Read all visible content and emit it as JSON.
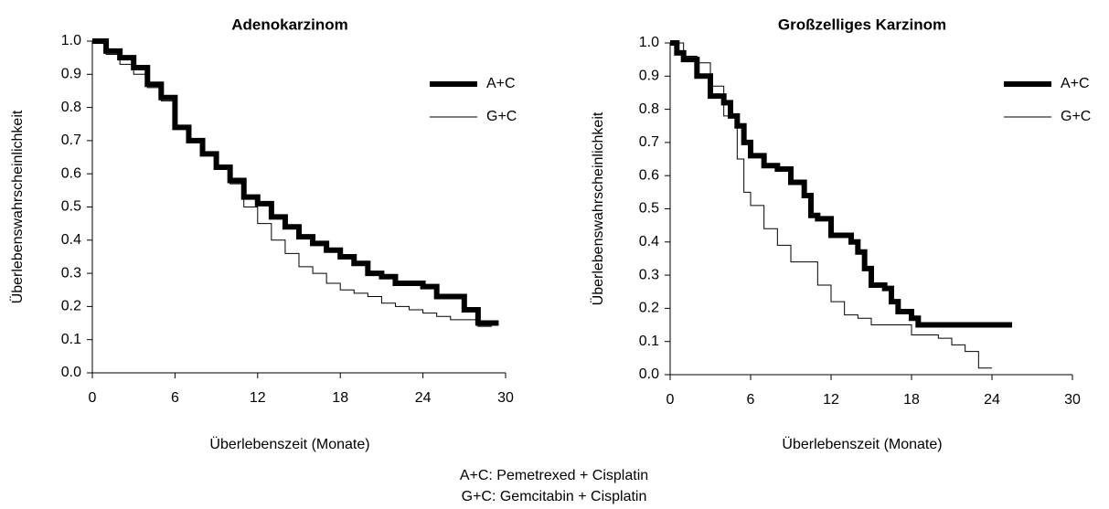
{
  "chart_data": [
    {
      "type": "step",
      "title": "Adenokarzinom",
      "xlabel": "Überlebenszeit (Monate)",
      "ylabel": "Überlebenswahrscheinlichkeit",
      "xlim": [
        0,
        30
      ],
      "xticks": [
        0,
        6,
        12,
        18,
        24,
        30
      ],
      "ylim": [
        0,
        1
      ],
      "yticks": [
        {
          "value": 0,
          "label": "0.0"
        },
        0.1,
        0.2,
        0.3,
        0.4,
        0.5,
        0.6,
        0.7,
        0.8,
        0.9,
        {
          "value": 1,
          "label": "1.0"
        }
      ],
      "legend": "upper right",
      "series": [
        {
          "name": "A+C",
          "color": "#000000",
          "line_width": 6,
          "x": [
            0,
            1,
            2,
            3,
            4,
            5,
            6,
            7,
            8,
            9,
            10,
            11,
            12,
            13,
            14,
            15,
            16,
            17,
            18,
            19,
            20,
            21,
            22,
            24,
            25,
            27,
            28,
            29.5
          ],
          "values": [
            1.0,
            0.97,
            0.95,
            0.92,
            0.87,
            0.83,
            0.74,
            0.7,
            0.66,
            0.62,
            0.58,
            0.53,
            0.51,
            0.47,
            0.44,
            0.41,
            0.39,
            0.37,
            0.35,
            0.33,
            0.3,
            0.29,
            0.27,
            0.26,
            0.23,
            0.19,
            0.15,
            0.15
          ]
        },
        {
          "name": "G+C",
          "color": "#000000",
          "line_width": 1,
          "x": [
            0,
            1,
            2,
            3,
            4,
            5,
            6,
            7,
            8,
            9,
            10,
            11,
            12,
            13,
            14,
            15,
            16,
            17,
            18,
            19,
            20,
            21,
            22,
            23,
            24,
            25,
            26,
            28,
            29
          ],
          "values": [
            1.0,
            0.96,
            0.93,
            0.9,
            0.86,
            0.82,
            0.74,
            0.7,
            0.66,
            0.62,
            0.57,
            0.5,
            0.45,
            0.4,
            0.36,
            0.32,
            0.3,
            0.27,
            0.25,
            0.24,
            0.23,
            0.21,
            0.2,
            0.19,
            0.18,
            0.17,
            0.16,
            0.14,
            0.14
          ]
        }
      ]
    },
    {
      "type": "step",
      "title": "Großzelliges Karzinom",
      "xlabel": "Überlebenszeit (Monate)",
      "ylabel": "Überlebenswahrscheinlichkeit",
      "xlim": [
        0,
        30
      ],
      "xticks": [
        0,
        6,
        12,
        18,
        24,
        30
      ],
      "ylim": [
        0,
        1
      ],
      "yticks": [
        {
          "value": 0,
          "label": "0.0"
        },
        0.1,
        0.2,
        0.3,
        0.4,
        0.5,
        0.6,
        0.7,
        0.8,
        0.9,
        {
          "value": 1,
          "label": "1.0"
        }
      ],
      "legend": "upper right",
      "series": [
        {
          "name": "A+C",
          "color": "#000000",
          "line_width": 6,
          "x": [
            0,
            0.5,
            1,
            2,
            3,
            4,
            4.5,
            5,
            5.5,
            6,
            7,
            8,
            9,
            10,
            10.5,
            11,
            12,
            13.5,
            14,
            14.5,
            15,
            16,
            16.5,
            17,
            18,
            18.5,
            25.5
          ],
          "values": [
            1.0,
            0.97,
            0.95,
            0.9,
            0.84,
            0.82,
            0.78,
            0.75,
            0.7,
            0.66,
            0.63,
            0.62,
            0.58,
            0.54,
            0.48,
            0.47,
            0.42,
            0.4,
            0.37,
            0.32,
            0.27,
            0.26,
            0.22,
            0.19,
            0.17,
            0.15,
            0.15
          ]
        },
        {
          "name": "G+C",
          "color": "#000000",
          "line_width": 1,
          "x": [
            0,
            1,
            2,
            3,
            4,
            5,
            5.5,
            6,
            7,
            8,
            9,
            11,
            12,
            13,
            14,
            15,
            18,
            20,
            21,
            22,
            23,
            24
          ],
          "values": [
            1.0,
            0.96,
            0.94,
            0.87,
            0.78,
            0.65,
            0.55,
            0.51,
            0.44,
            0.39,
            0.34,
            0.27,
            0.22,
            0.18,
            0.17,
            0.15,
            0.12,
            0.11,
            0.09,
            0.07,
            0.02,
            0.02
          ]
        }
      ]
    }
  ],
  "notes": [
    "A+C: Pemetrexed + Cisplatin",
    "G+C: Gemcitabin + Cisplatin"
  ]
}
